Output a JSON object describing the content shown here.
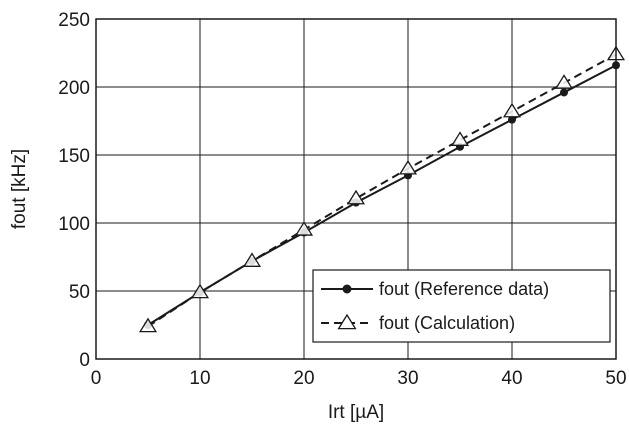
{
  "chart_data": {
    "type": "line",
    "title": "",
    "xlabel": "Irt [µA]",
    "ylabel": "fout [kHz]",
    "xlim": [
      0,
      50
    ],
    "ylim": [
      0,
      250
    ],
    "xticks": [
      0,
      10,
      20,
      30,
      40,
      50
    ],
    "yticks": [
      0,
      50,
      100,
      150,
      200,
      250
    ],
    "grid": true,
    "legend_position": "bottom-right",
    "series": [
      {
        "name": "fout (Reference data)",
        "style": "solid",
        "marker": "filled-circle",
        "color": "#1a1a1a",
        "x": [
          5,
          10,
          15,
          20,
          25,
          30,
          35,
          40,
          45,
          50
        ],
        "y": [
          25,
          49,
          72,
          93,
          115,
          135,
          156,
          176,
          196,
          216
        ]
      },
      {
        "name": "fout (Calculation)",
        "style": "dashed",
        "marker": "open-triangle",
        "color": "#1a1a1a",
        "x": [
          5,
          10,
          15,
          20,
          25,
          30,
          35,
          40,
          45,
          50
        ],
        "y": [
          24,
          49,
          72,
          95,
          118,
          140,
          161,
          182,
          203,
          224
        ]
      }
    ]
  }
}
